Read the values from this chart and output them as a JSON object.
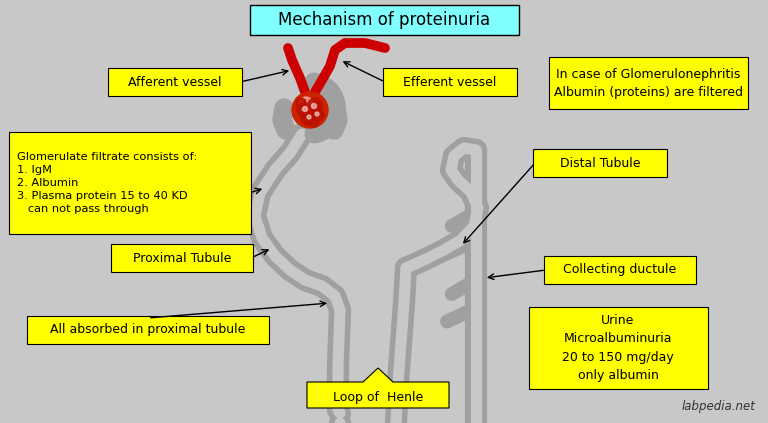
{
  "bg_color": "#c8c8c8",
  "title": "Mechanism of proteinuria",
  "title_bg": "#80ffff",
  "title_color": "black",
  "label_bg": "#ffff00",
  "label_color": "black",
  "kidney_color": "#a0a0a0",
  "glomerulus_red": "#dd0000",
  "glomerulus_dark": "#aa0000",
  "vessel_red": "#cc0000",
  "watermark": "labpedia.net",
  "labels": {
    "afferent": "Afferent vessel",
    "efferent": "Efferent vessel",
    "glomerulate": "Glomerulate filtrate consists of:\n1. IgM\n2. Albumin\n3. Plasma protein 15 to 40 KD\n   can not pass through",
    "proximal": "Proximal Tubule",
    "absorbed": "All absorbed in proximal tubule",
    "loop": "Loop of  Henle",
    "distal": "Distal Tubule",
    "collecting": "Collecting ductule",
    "urine": "Urine\nMicroalbuminuria\n20 to 150 mg/day\nonly albumin",
    "glomerulonephritis": "In case of Glomerulonephritis\nAlbumin (proteins) are filtered"
  }
}
